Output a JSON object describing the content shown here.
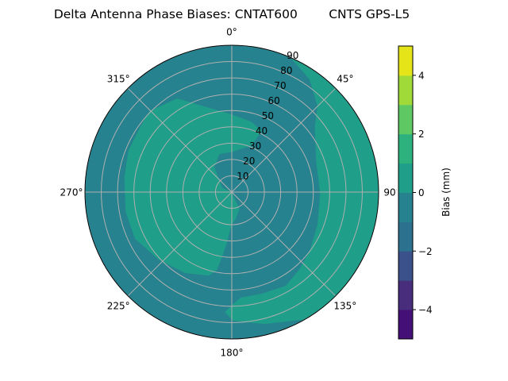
{
  "chart_data": {
    "type": "heatmap",
    "subtype": "polar-contour",
    "title": "Delta Antenna Phase Biases: CNTAT600        CNTS GPS-L5",
    "radial_ticks": [
      10,
      20,
      30,
      40,
      50,
      60,
      70,
      80,
      90
    ],
    "rlim": [
      0,
      90
    ],
    "angular_ticks": [
      "0°",
      "45°",
      "90°",
      "135°",
      "180°",
      "225°",
      "270°",
      "315°"
    ],
    "angular_direction": "clockwise",
    "zero_location": "top",
    "grid": true,
    "colorbar": {
      "label": "Bias (mm)",
      "range": [
        -5,
        5
      ],
      "levels": [
        -5,
        -4,
        -3,
        -2,
        -1,
        0,
        1,
        2,
        3,
        4,
        5
      ],
      "tick_labels": [
        "−4",
        "−2",
        "0",
        "2",
        "4"
      ],
      "tick_values": [
        -4,
        -2,
        0,
        2,
        4
      ],
      "colors": [
        "#440f76",
        "#472d7b",
        "#3b518b",
        "#2c718e",
        "#26828e",
        "#1f9e89",
        "#2db27d",
        "#5ec962",
        "#a0da39",
        "#e5e419"
      ]
    },
    "regions": [
      {
        "range": [
          -1,
          0
        ],
        "color": "#26828e"
      },
      {
        "range": [
          0,
          1
        ],
        "color": "#1f9e89"
      }
    ]
  }
}
